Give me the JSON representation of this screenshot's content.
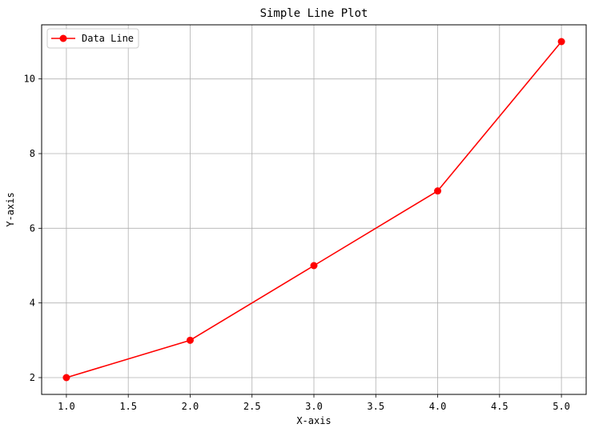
{
  "chart_data": {
    "type": "line",
    "title": "Simple Line Plot",
    "xlabel": "X-axis",
    "ylabel": "Y-axis",
    "xlim": [
      0.8,
      5.2
    ],
    "ylim": [
      1.55,
      11.45
    ],
    "xticks": [
      1.0,
      1.5,
      2.0,
      2.5,
      3.0,
      3.5,
      4.0,
      4.5,
      5.0
    ],
    "xtick_labels": [
      "1.0",
      "1.5",
      "2.0",
      "2.5",
      "3.0",
      "3.5",
      "4.0",
      "4.5",
      "5.0"
    ],
    "yticks": [
      2,
      4,
      6,
      8,
      10
    ],
    "ytick_labels": [
      "2",
      "4",
      "6",
      "8",
      "10"
    ],
    "grid": true,
    "legend_position": "upper left",
    "series": [
      {
        "name": "Data Line",
        "color": "#ff0000",
        "marker": "circle",
        "x": [
          1,
          2,
          3,
          4,
          5
        ],
        "y": [
          2,
          3,
          5,
          7,
          11
        ]
      }
    ]
  }
}
